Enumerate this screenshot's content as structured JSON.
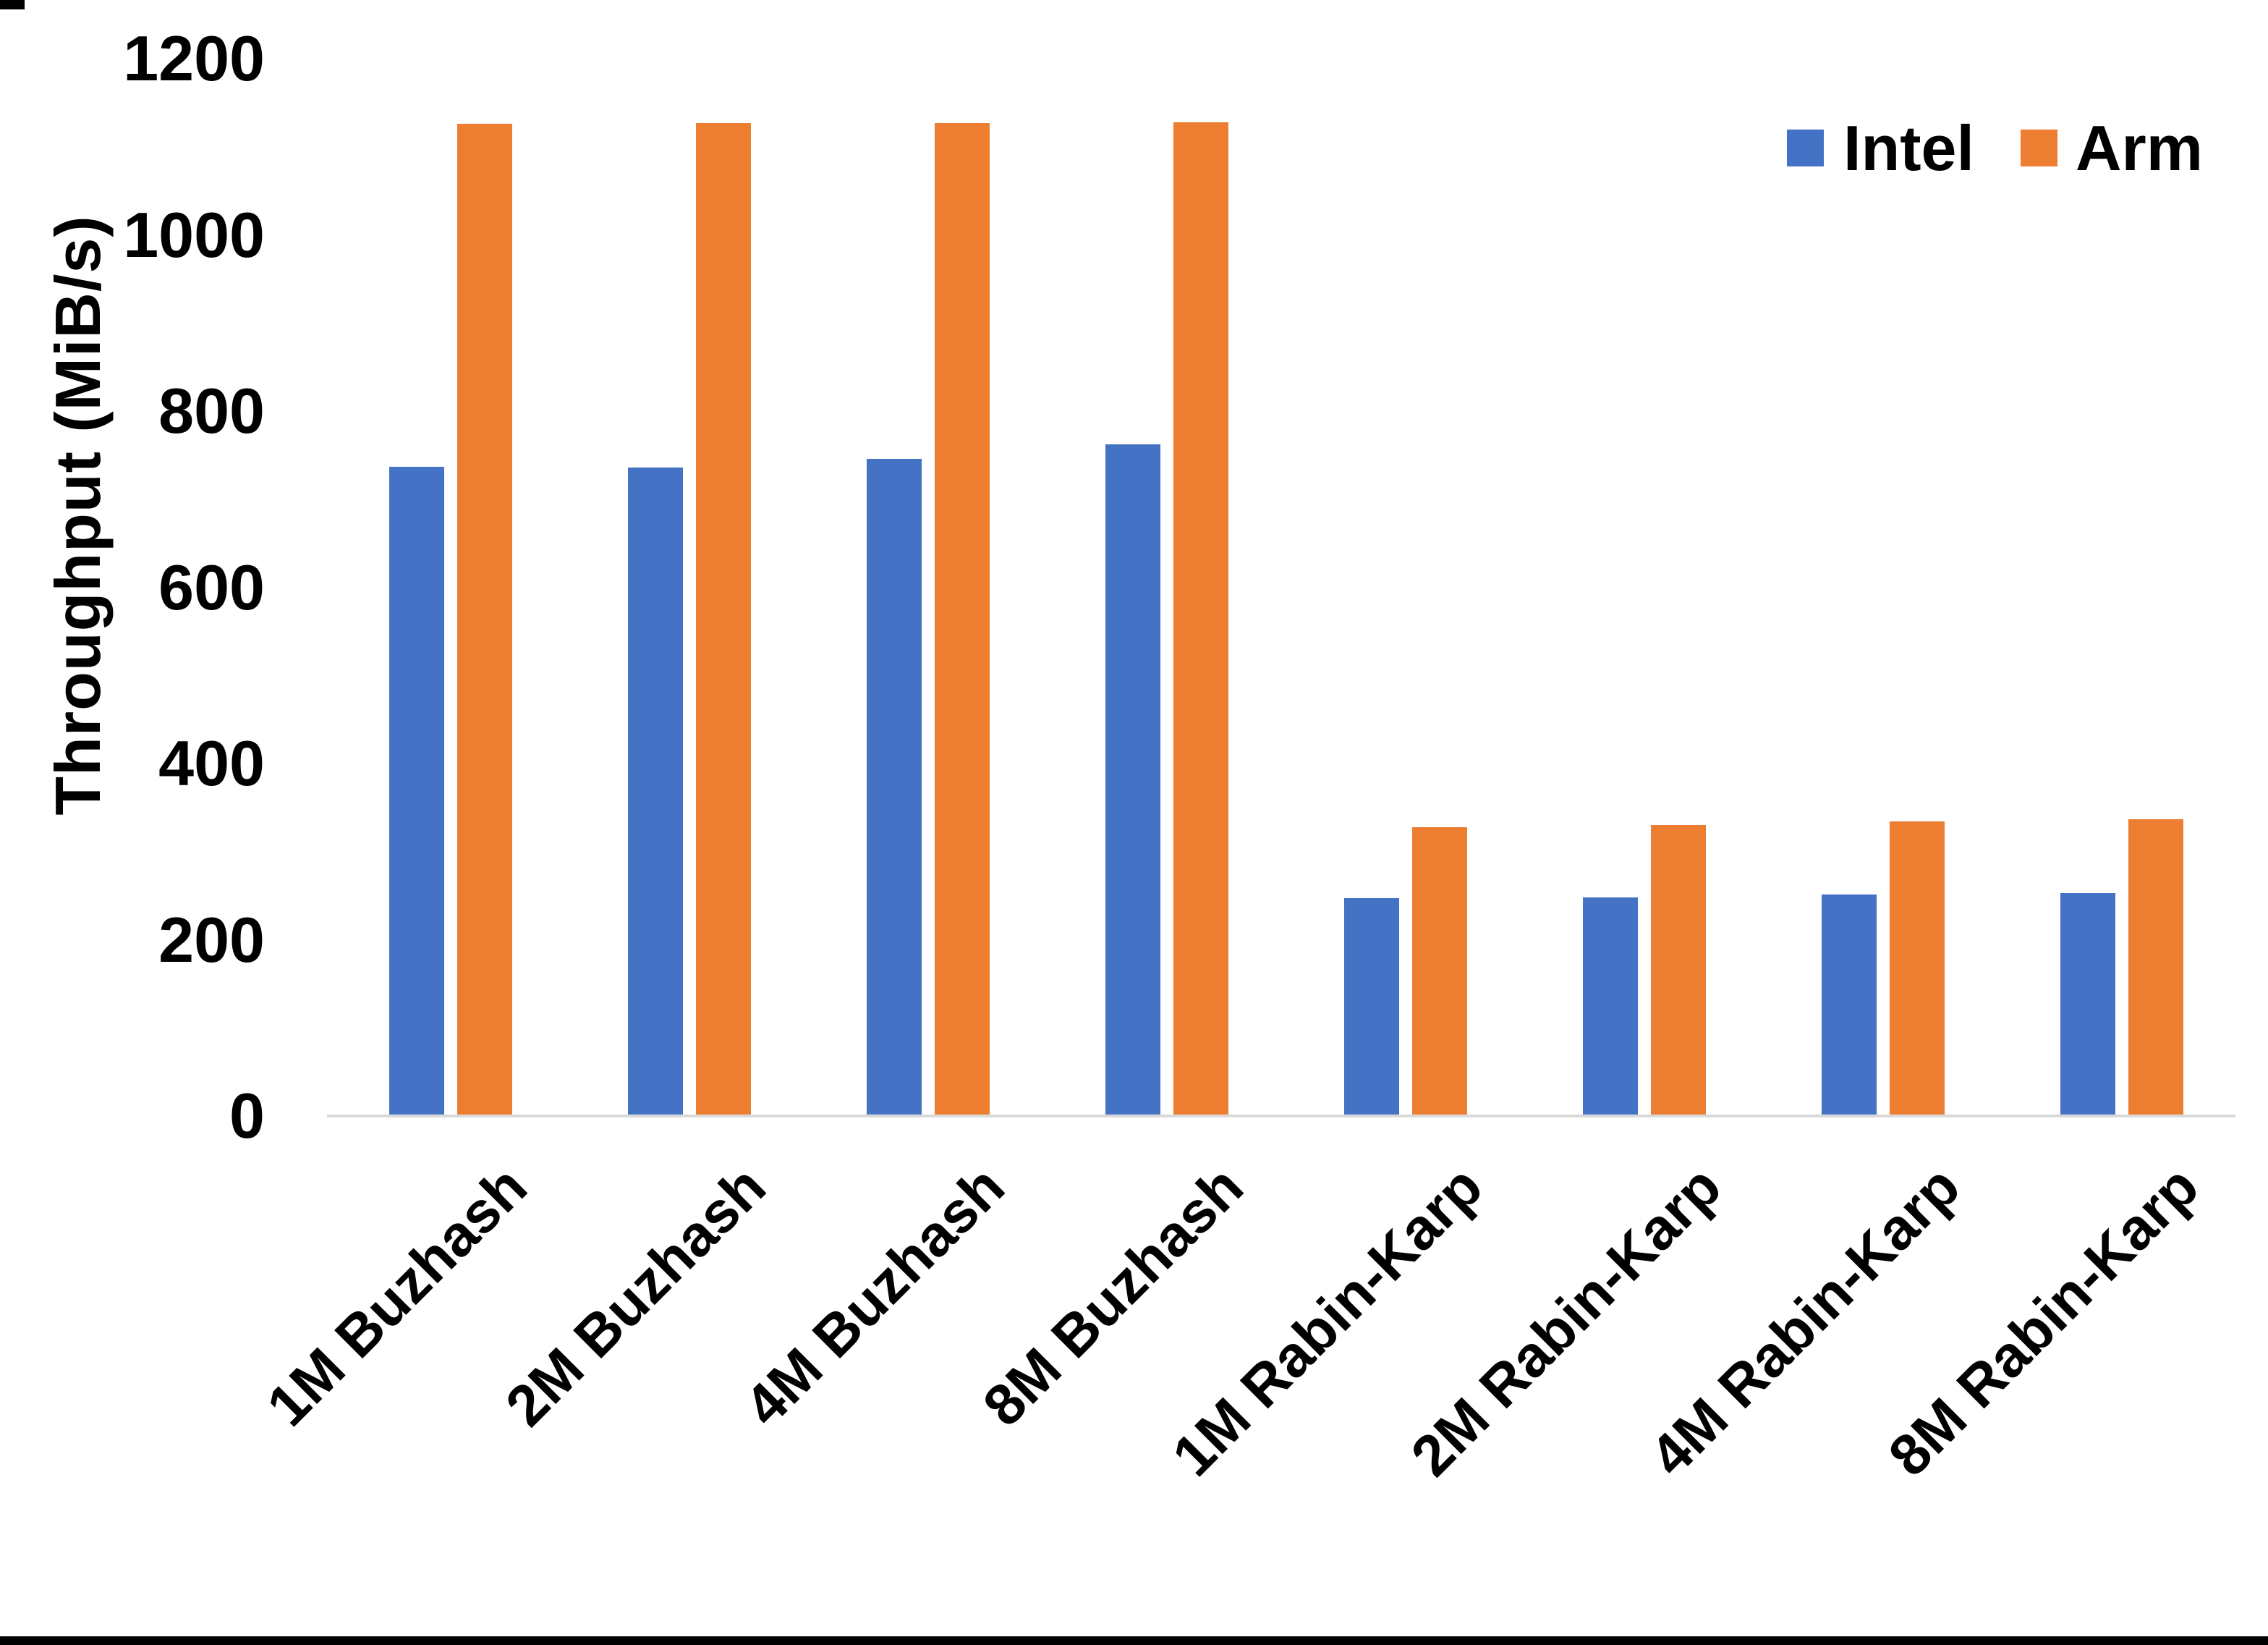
{
  "page": {
    "background": "#FFFFFF",
    "bottom_border_color": "#000000"
  },
  "chart_data": {
    "type": "bar",
    "title": "",
    "ylabel": "Throughput (MiB/s)",
    "xlabel": "",
    "ylim": [
      0,
      1200
    ],
    "yticks": [
      0,
      200,
      400,
      600,
      800,
      1000,
      1200
    ],
    "grid": false,
    "legend_position": "top-right",
    "categories": [
      "1M Buzhash",
      "2M Buzhash",
      "4M Buzhash",
      "8M Buzhash",
      "1M Rabin-Karp",
      "2M Rabin-Karp",
      "4M Rabin-Karp",
      "8M Rabin-Karp"
    ],
    "series": [
      {
        "name": "Intel",
        "color": "#4472C4",
        "values": [
          737,
          736,
          746,
          762,
          247,
          248,
          251,
          253
        ]
      },
      {
        "name": "Arm",
        "color": "#ED7D31",
        "values": [
          1126,
          1127,
          1127,
          1128,
          328,
          330,
          334,
          337
        ]
      }
    ],
    "axis_line_color": "#D9D9D9",
    "text_color": "#000000"
  }
}
